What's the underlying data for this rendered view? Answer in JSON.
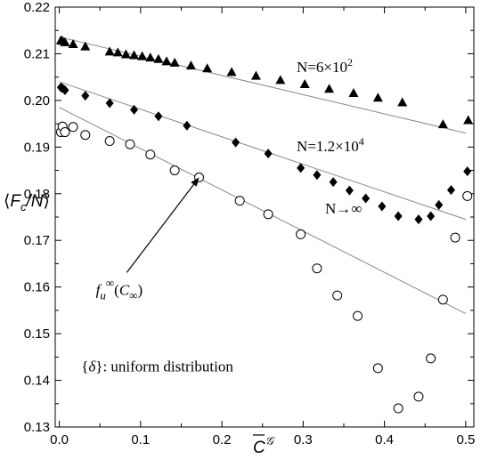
{
  "chart_data": {
    "type": "scatter",
    "title": "",
    "xlabel": "C^G",
    "ylabel": "⟨F_c/N⟩",
    "xlim": [
      -0.005,
      0.51
    ],
    "ylim": [
      0.13,
      0.22
    ],
    "x_ticks": [
      "0.0",
      "0.1",
      "0.2",
      "0.3",
      "0.4",
      "0.5"
    ],
    "x_tick_values": [
      0.0,
      0.1,
      0.2,
      0.3,
      0.4,
      0.5
    ],
    "y_ticks": [
      "0.13",
      "0.14",
      "0.15",
      "0.16",
      "0.17",
      "0.18",
      "0.19",
      "0.20",
      "0.21",
      "0.22"
    ],
    "y_tick_values": [
      0.13,
      0.14,
      0.15,
      0.16,
      0.17,
      0.18,
      0.19,
      0.2,
      0.21,
      0.22
    ],
    "grid": false,
    "series": [
      {
        "name": "N=6×10^2",
        "marker": "triangle",
        "x": [
          0.002,
          0.004,
          0.007,
          0.017,
          0.032,
          0.062,
          0.072,
          0.082,
          0.092,
          0.102,
          0.112,
          0.122,
          0.132,
          0.142,
          0.162,
          0.182,
          0.212,
          0.242,
          0.272,
          0.302,
          0.332,
          0.362,
          0.392,
          0.422,
          0.472,
          0.503
        ],
        "y": [
          0.2128,
          0.2127,
          0.2124,
          0.212,
          0.2115,
          0.2104,
          0.2102,
          0.2098,
          0.2096,
          0.2094,
          0.2091,
          0.2088,
          0.2083,
          0.208,
          0.2074,
          0.2068,
          0.206,
          0.2052,
          0.2043,
          0.2034,
          0.2024,
          0.2015,
          0.2005,
          0.1995,
          0.1948,
          0.1957
        ]
      },
      {
        "name": "N=1.2×10^4",
        "marker": "diamond",
        "x": [
          0.002,
          0.004,
          0.007,
          0.032,
          0.062,
          0.092,
          0.122,
          0.157,
          0.217,
          0.257,
          0.297,
          0.317,
          0.337,
          0.357,
          0.377,
          0.397,
          0.417,
          0.442,
          0.457,
          0.467,
          0.482,
          0.502
        ],
        "y": [
          0.2028,
          0.2026,
          0.2022,
          0.201,
          0.1994,
          0.198,
          0.1966,
          0.1946,
          0.191,
          0.1886,
          0.1855,
          0.184,
          0.1825,
          0.1807,
          0.179,
          0.1773,
          0.1752,
          0.1745,
          0.1752,
          0.1776,
          0.1808,
          0.1848
        ]
      },
      {
        "name": "N→∞",
        "marker": "circle",
        "x": [
          0.002,
          0.004,
          0.007,
          0.017,
          0.032,
          0.062,
          0.087,
          0.112,
          0.142,
          0.172,
          0.222,
          0.257,
          0.297,
          0.317,
          0.342,
          0.367,
          0.392,
          0.417,
          0.442,
          0.457,
          0.472,
          0.487,
          0.502
        ],
        "y": [
          0.1932,
          0.1944,
          0.1932,
          0.1943,
          0.1926,
          0.1913,
          0.1906,
          0.1884,
          0.185,
          0.1835,
          0.1785,
          0.1756,
          0.1713,
          0.164,
          0.1582,
          0.1538,
          0.1426,
          0.134,
          0.1365,
          0.1447,
          0.1573,
          0.1706,
          0.1795
        ]
      }
    ],
    "fit_lines": [
      {
        "series": "N=6×10^2",
        "x": [
          0.0,
          0.5
        ],
        "y": [
          0.2136,
          0.193
        ]
      },
      {
        "series": "N=1.2×10^4",
        "x": [
          0.0,
          0.5
        ],
        "y": [
          0.204,
          0.1745
        ]
      },
      {
        "series": "N→∞",
        "x": [
          0.0,
          0.5
        ],
        "y": [
          0.1985,
          0.1543
        ]
      }
    ],
    "annotations": [
      {
        "text": "N=6×10²",
        "x": 0.292,
        "y": 0.2061
      },
      {
        "text": "N=1.2×10⁴",
        "x": 0.292,
        "y": 0.1891
      },
      {
        "text": "N→∞",
        "x": 0.327,
        "y": 0.1758
      },
      {
        "text": "f_u^∞(C_∞)",
        "x": 0.045,
        "y": 0.1583
      },
      {
        "text": "{δ}: uniform distribution",
        "x": 0.027,
        "y": 0.1419
      }
    ],
    "arrow": {
      "from": [
        0.083,
        0.1631
      ],
      "to": [
        0.172,
        0.1835
      ]
    }
  }
}
